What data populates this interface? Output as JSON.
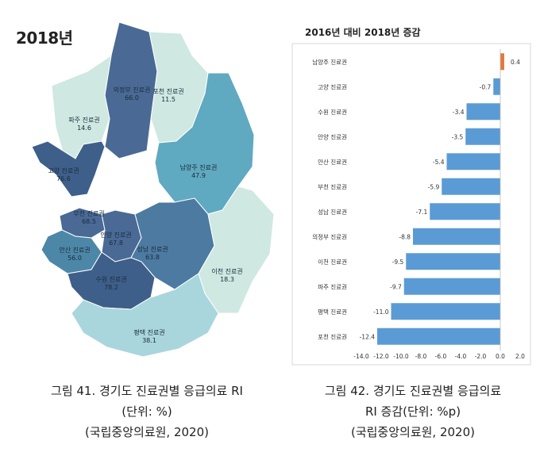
{
  "map": {
    "title": "2018년",
    "regions": [
      {
        "name": "의정부 진료권",
        "value": "66.0",
        "color": "#4a6a95"
      },
      {
        "name": "포천 진료권",
        "value": "11.5",
        "color": "#cfe8e2"
      },
      {
        "name": "파주 진료권",
        "value": "14.6",
        "color": "#cfe8e2"
      },
      {
        "name": "고양 진료권",
        "value": "76.6",
        "color": "#3e5f8a"
      },
      {
        "name": "남양주 진료권",
        "value": "47.9",
        "color": "#5fa9c1"
      },
      {
        "name": "부천 진료권",
        "value": "68.5",
        "color": "#4a6a95"
      },
      {
        "name": "안양 진료권",
        "value": "67.8",
        "color": "#4a6a95"
      },
      {
        "name": "안산 진료권",
        "value": "56.0",
        "color": "#4d87a8"
      },
      {
        "name": "성남 진료권",
        "value": "63.8",
        "color": "#4d7aa0"
      },
      {
        "name": "이천 진료권",
        "value": "18.3",
        "color": "#cfe8e2"
      },
      {
        "name": "수원 진료권",
        "value": "78.2",
        "color": "#3e5f8a"
      },
      {
        "name": "평택 진료권",
        "value": "38.1",
        "color": "#a8d6dc"
      }
    ]
  },
  "bar_title": "2016년 대비 2018년 증감",
  "chart_data": {
    "type": "bar",
    "orientation": "horizontal",
    "categories": [
      "남양주 진료권",
      "고양 진료권",
      "수원 진료권",
      "안양 진료권",
      "안산 진료권",
      "부천 진료권",
      "성남 진료권",
      "의정부 진료권",
      "이천 진료권",
      "파주 진료권",
      "평택 진료권",
      "포천 진료권"
    ],
    "values": [
      0.4,
      -0.7,
      -3.4,
      -3.5,
      -5.4,
      -5.9,
      -7.1,
      -8.8,
      -9.5,
      -9.7,
      -11.0,
      -12.4
    ],
    "value_labels": [
      "0.4",
      "-0.7",
      "-3.4",
      "-3.5",
      "-5.4",
      "-5.9",
      "-7.1",
      "-8.8",
      "-9.5",
      "-9.7",
      "-11.0",
      "-12.4"
    ],
    "xlim": [
      -14.0,
      2.0
    ],
    "ticks": [
      -14.0,
      -12.0,
      -10.0,
      -8.0,
      -6.0,
      -4.0,
      -2.0,
      0.0,
      2.0
    ],
    "tick_labels": [
      "-14.0",
      "-12.0",
      "-10.0",
      "-8.0",
      "-6.0",
      "-4.0",
      "-2.0",
      "0.0",
      "2.0"
    ],
    "positive_color": "#e07b39",
    "negative_color": "#5b9bd5",
    "grid": false
  },
  "captions": {
    "left": [
      "그림 41. 경기도 진료권별 응급의료 RI",
      "(단위: %)",
      "(국립중앙의료원, 2020)"
    ],
    "right": [
      "그림 42. 경기도 진료권별 응급의료",
      "RI 증감(단위: %p)",
      "(국립중앙의료원, 2020)"
    ]
  }
}
